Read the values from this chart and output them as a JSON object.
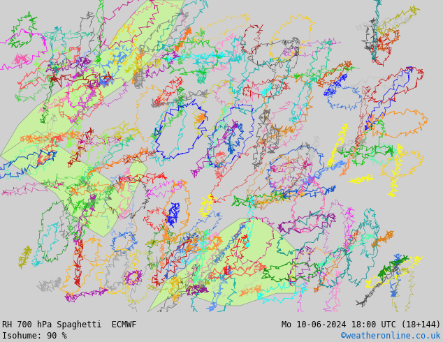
{
  "title_left": "RH 700 hPa Spaghetti  ECMWF",
  "title_right": "Mo 10-06-2024 18:00 UTC (18+144)",
  "subtitle_left": "Isohume: 90 %",
  "subtitle_right": "©weatheronline.co.uk",
  "subtitle_right_color": "#0066cc",
  "map_bg_color": "#e8e8e8",
  "ocean_color": "#e8e8e8",
  "land_color": "#c8f0a0",
  "coast_color": "#888888",
  "coast_linewidth": 0.4,
  "footer_bg": "#d0d0d0",
  "title_fontsize": 8.5,
  "subtitle_fontsize": 8.5,
  "fig_width": 6.34,
  "fig_height": 4.9,
  "dpi": 100,
  "extent": [
    -120,
    0,
    -5,
    45
  ],
  "spaghetti_colors": [
    "#808080",
    "#606060",
    "#a0a0a0",
    "#404040",
    "#c0c0c0",
    "#ff0000",
    "#cc0000",
    "#ff4444",
    "#aa0000",
    "#00aa00",
    "#008800",
    "#44cc44",
    "#00cc00",
    "#0000ff",
    "#0044cc",
    "#4488ff",
    "#2266dd",
    "#ff8800",
    "#ffaa00",
    "#ffcc00",
    "#dd7700",
    "#aa00aa",
    "#cc44cc",
    "#ff00ff",
    "#880088",
    "#00aaaa",
    "#00cccc",
    "#00ffff",
    "#008888",
    "#ffff00",
    "#cccc00",
    "#aaaa00",
    "#ff44aa",
    "#cc0088",
    "#ff88cc",
    "#44ffaa",
    "#00cc88",
    "#88ff44",
    "#ff8844",
    "#cc4400",
    "#ff6600"
  ],
  "num_spaghetti": 200,
  "seed": 42
}
